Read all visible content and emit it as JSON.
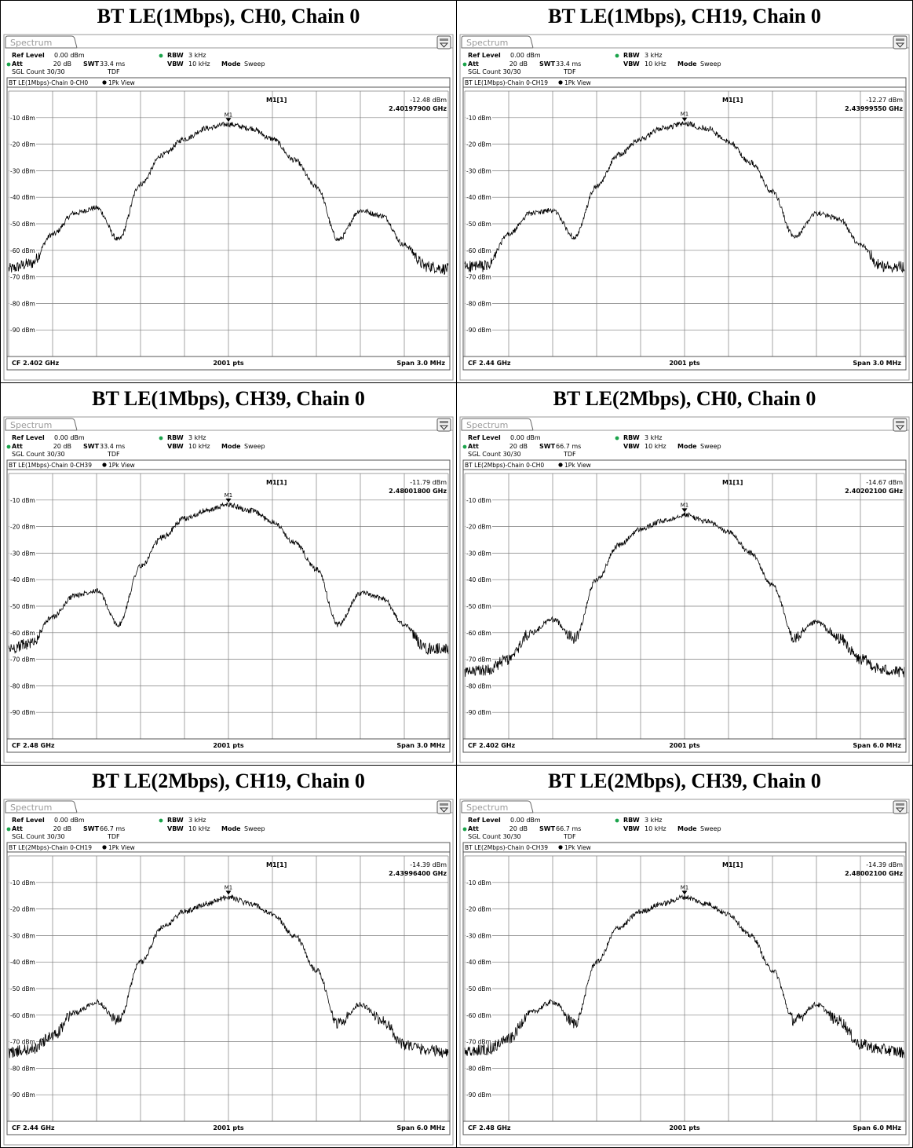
{
  "panels": [
    {
      "title": "BT LE(1Mbps), CH0, Chain 0",
      "tab": "Spectrum",
      "settings": {
        "ref_level_label": "Ref Level",
        "ref_level": "0.00 dBm",
        "att_label": "Att",
        "att": "20 dB",
        "swt_label": "SWT",
        "swt": "33.4 ms",
        "rbw_label": "RBW",
        "rbw": "3 kHz",
        "vbw_label": "VBW",
        "vbw": "10 kHz",
        "mode_label": "Mode",
        "mode": "Sweep",
        "count": "SGL Count 30/30",
        "tdf": "TDF"
      },
      "trace_label": "BT LE(1Mbps)-Chain 0-CH0",
      "trace_mode": "1Pk View",
      "marker": {
        "name": "M1[1]",
        "tag": "M1",
        "level": "-12.48 dBm",
        "freq": "2.40197900 GHz"
      },
      "footer": {
        "cf": "CF 2.402 GHz",
        "pts": "2001 pts",
        "span": "Span 3.0 MHz"
      }
    },
    {
      "title": "BT LE(1Mbps), CH19, Chain 0",
      "tab": "Spectrum",
      "settings": {
        "ref_level_label": "Ref Level",
        "ref_level": "0.00 dBm",
        "att_label": "Att",
        "att": "20 dB",
        "swt_label": "SWT",
        "swt": "33.4 ms",
        "rbw_label": "RBW",
        "rbw": "3 kHz",
        "vbw_label": "VBW",
        "vbw": "10 kHz",
        "mode_label": "Mode",
        "mode": "Sweep",
        "count": "SGL Count 30/30",
        "tdf": "TDF"
      },
      "trace_label": "BT LE(1Mbps)-Chain 0-CH19",
      "trace_mode": "1Pk View",
      "marker": {
        "name": "M1[1]",
        "tag": "M1",
        "level": "-12.27 dBm",
        "freq": "2.43999550 GHz"
      },
      "footer": {
        "cf": "CF 2.44 GHz",
        "pts": "2001 pts",
        "span": "Span 3.0 MHz"
      }
    },
    {
      "title": "BT LE(1Mbps), CH39, Chain 0",
      "tab": "Spectrum",
      "settings": {
        "ref_level_label": "Ref Level",
        "ref_level": "0.00 dBm",
        "att_label": "Att",
        "att": "20 dB",
        "swt_label": "SWT",
        "swt": "33.4 ms",
        "rbw_label": "RBW",
        "rbw": "3 kHz",
        "vbw_label": "VBW",
        "vbw": "10 kHz",
        "mode_label": "Mode",
        "mode": "Sweep",
        "count": "SGL Count 30/30",
        "tdf": "TDF"
      },
      "trace_label": "BT LE(1Mbps)-Chain 0-CH39",
      "trace_mode": "1Pk View",
      "marker": {
        "name": "M1[1]",
        "tag": "M1",
        "level": "-11.79 dBm",
        "freq": "2.48001800 GHz"
      },
      "footer": {
        "cf": "CF 2.48 GHz",
        "pts": "2001 pts",
        "span": "Span 3.0 MHz"
      }
    },
    {
      "title": "BT LE(2Mbps), CH0, Chain 0",
      "tab": "Spectrum",
      "settings": {
        "ref_level_label": "Ref Level",
        "ref_level": "0.00 dBm",
        "att_label": "Att",
        "att": "20 dB",
        "swt_label": "SWT",
        "swt": "66.7 ms",
        "rbw_label": "RBW",
        "rbw": "3 kHz",
        "vbw_label": "VBW",
        "vbw": "10 kHz",
        "mode_label": "Mode",
        "mode": "Sweep",
        "count": "SGL Count 30/30",
        "tdf": "TDF"
      },
      "trace_label": "BT LE(2Mbps)-Chain 0-CH0",
      "trace_mode": "1Pk View",
      "marker": {
        "name": "M1[1]",
        "tag": "M1",
        "level": "-14.67 dBm",
        "freq": "2.40202100 GHz"
      },
      "footer": {
        "cf": "CF 2.402 GHz",
        "pts": "2001 pts",
        "span": "Span 6.0 MHz"
      }
    },
    {
      "title": "BT LE(2Mbps), CH19, Chain 0",
      "tab": "Spectrum",
      "settings": {
        "ref_level_label": "Ref Level",
        "ref_level": "0.00 dBm",
        "att_label": "Att",
        "att": "20 dB",
        "swt_label": "SWT",
        "swt": "66.7 ms",
        "rbw_label": "RBW",
        "rbw": "3 kHz",
        "vbw_label": "VBW",
        "vbw": "10 kHz",
        "mode_label": "Mode",
        "mode": "Sweep",
        "count": "SGL Count 30/30",
        "tdf": "TDF"
      },
      "trace_label": "BT LE(2Mbps)-Chain 0-CH19",
      "trace_mode": "1Pk View",
      "marker": {
        "name": "M1[1]",
        "tag": "M1",
        "level": "-14.39 dBm",
        "freq": "2.43996400 GHz"
      },
      "footer": {
        "cf": "CF 2.44 GHz",
        "pts": "2001 pts",
        "span": "Span 6.0 MHz"
      }
    },
    {
      "title": "BT LE(2Mbps), CH39, Chain 0",
      "tab": "Spectrum",
      "settings": {
        "ref_level_label": "Ref Level",
        "ref_level": "0.00 dBm",
        "att_label": "Att",
        "att": "20 dB",
        "swt_label": "SWT",
        "swt": "66.7 ms",
        "rbw_label": "RBW",
        "rbw": "3 kHz",
        "vbw_label": "VBW",
        "vbw": "10 kHz",
        "mode_label": "Mode",
        "mode": "Sweep",
        "count": "SGL Count 30/30",
        "tdf": "TDF"
      },
      "trace_label": "BT LE(2Mbps)-Chain 0-CH39",
      "trace_mode": "1Pk View",
      "marker": {
        "name": "M1[1]",
        "tag": "M1",
        "level": "-14.39 dBm",
        "freq": "2.48002100 GHz"
      },
      "footer": {
        "cf": "CF 2.48 GHz",
        "pts": "2001 pts",
        "span": "Span 6.0 MHz"
      }
    }
  ],
  "chart_data": [
    {
      "type": "line",
      "ylim": [
        -100,
        0
      ],
      "ytick_labels": [
        "-10 dBm",
        "-20 dBm",
        "-30 dBm",
        "-40 dBm",
        "-50 dBm",
        "-60 dBm",
        "-70 dBm",
        "-80 dBm",
        "-90 dBm"
      ],
      "xlim_mhz": [
        -1.5,
        1.5
      ],
      "grid": true,
      "series": [
        {
          "x": [
            -1.5,
            -1.35,
            -1.2,
            -1.05,
            -0.9,
            -0.75,
            -0.6,
            -0.45,
            -0.3,
            -0.15,
            0,
            0.15,
            0.3,
            0.45,
            0.6,
            0.75,
            0.9,
            1.05,
            1.2,
            1.35,
            1.5
          ],
          "y": [
            -67,
            -65,
            -54,
            -46,
            -44,
            -56,
            -35,
            -24,
            -18,
            -14,
            -12.5,
            -14,
            -18,
            -26,
            -36,
            -56,
            -45,
            -47,
            -58,
            -66,
            -67
          ]
        }
      ]
    },
    {
      "type": "line",
      "ylim": [
        -100,
        0
      ],
      "ytick_labels": [
        "-10 dBm",
        "-20 dBm",
        "-30 dBm",
        "-40 dBm",
        "-50 dBm",
        "-60 dBm",
        "-70 dBm",
        "-80 dBm",
        "-90 dBm"
      ],
      "xlim_mhz": [
        -1.5,
        1.5
      ],
      "grid": true,
      "series": [
        {
          "x": [
            -1.5,
            -1.35,
            -1.2,
            -1.05,
            -0.9,
            -0.75,
            -0.6,
            -0.45,
            -0.3,
            -0.15,
            0,
            0.15,
            0.3,
            0.45,
            0.6,
            0.75,
            0.9,
            1.05,
            1.2,
            1.35,
            1.5
          ],
          "y": [
            -66,
            -66,
            -54,
            -46,
            -45,
            -55,
            -36,
            -24,
            -18,
            -14,
            -12.3,
            -14,
            -19,
            -27,
            -38,
            -55,
            -46,
            -48,
            -58,
            -66,
            -66
          ]
        }
      ]
    },
    {
      "type": "line",
      "ylim": [
        -100,
        0
      ],
      "ytick_labels": [
        "-10 dBm",
        "-20 dBm",
        "-30 dBm",
        "-40 dBm",
        "-50 dBm",
        "-60 dBm",
        "-70 dBm",
        "-80 dBm",
        "-90 dBm"
      ],
      "xlim_mhz": [
        -1.5,
        1.5
      ],
      "grid": true,
      "series": [
        {
          "x": [
            -1.5,
            -1.35,
            -1.2,
            -1.05,
            -0.9,
            -0.75,
            -0.6,
            -0.45,
            -0.3,
            -0.15,
            0,
            0.15,
            0.3,
            0.45,
            0.6,
            0.75,
            0.9,
            1.05,
            1.2,
            1.35,
            1.5
          ],
          "y": [
            -66,
            -64,
            -54,
            -46,
            -44,
            -57,
            -35,
            -24,
            -17,
            -14,
            -11.8,
            -14,
            -18,
            -26,
            -36,
            -57,
            -45,
            -47,
            -57,
            -66,
            -66
          ]
        }
      ]
    },
    {
      "type": "line",
      "ylim": [
        -100,
        0
      ],
      "ytick_labels": [
        "-10 dBm",
        "-20 dBm",
        "-30 dBm",
        "-40 dBm",
        "-50 dBm",
        "-60 dBm",
        "-70 dBm",
        "-80 dBm",
        "-90 dBm"
      ],
      "xlim_mhz": [
        -3,
        3
      ],
      "grid": true,
      "series": [
        {
          "x": [
            -3,
            -2.7,
            -2.4,
            -2.1,
            -1.8,
            -1.5,
            -1.2,
            -0.9,
            -0.6,
            -0.3,
            0,
            0.3,
            0.6,
            0.9,
            1.2,
            1.5,
            1.8,
            2.1,
            2.4,
            2.7,
            3
          ],
          "y": [
            -75,
            -74,
            -70,
            -60,
            -55,
            -62,
            -40,
            -27,
            -21,
            -18,
            -15.5,
            -18,
            -22,
            -30,
            -42,
            -62,
            -56,
            -62,
            -70,
            -74,
            -75
          ]
        }
      ]
    },
    {
      "type": "line",
      "ylim": [
        -100,
        0
      ],
      "ytick_labels": [
        "-10 dBm",
        "-20 dBm",
        "-30 dBm",
        "-40 dBm",
        "-50 dBm",
        "-60 dBm",
        "-70 dBm",
        "-80 dBm",
        "-90 dBm"
      ],
      "xlim_mhz": [
        -3,
        3
      ],
      "grid": true,
      "series": [
        {
          "x": [
            -3,
            -2.7,
            -2.4,
            -2.1,
            -1.8,
            -1.5,
            -1.2,
            -0.9,
            -0.6,
            -0.3,
            0,
            0.3,
            0.6,
            0.9,
            1.2,
            1.5,
            1.8,
            2.1,
            2.4,
            2.7,
            3
          ],
          "y": [
            -74,
            -73,
            -68,
            -59,
            -55,
            -62,
            -40,
            -27,
            -21,
            -18,
            -15.5,
            -18,
            -22,
            -30,
            -43,
            -63,
            -56,
            -62,
            -71,
            -73,
            -74
          ]
        }
      ]
    },
    {
      "type": "line",
      "ylim": [
        -100,
        0
      ],
      "ytick_labels": [
        "-10 dBm",
        "-20 dBm",
        "-30 dBm",
        "-40 dBm",
        "-50 dBm",
        "-60 dBm",
        "-70 dBm",
        "-80 dBm",
        "-90 dBm"
      ],
      "xlim_mhz": [
        -3,
        3
      ],
      "grid": true,
      "series": [
        {
          "x": [
            -3,
            -2.7,
            -2.4,
            -2.1,
            -1.8,
            -1.5,
            -1.2,
            -0.9,
            -0.6,
            -0.3,
            0,
            0.3,
            0.6,
            0.9,
            1.2,
            1.5,
            1.8,
            2.1,
            2.4,
            2.7,
            3
          ],
          "y": [
            -74,
            -73,
            -69,
            -59,
            -55,
            -63,
            -40,
            -27,
            -21,
            -18,
            -15.5,
            -18,
            -22,
            -30,
            -43,
            -62,
            -56,
            -62,
            -71,
            -73,
            -74
          ]
        }
      ]
    }
  ],
  "colors": {
    "trace": "#000000",
    "grid": "#7f7f7f",
    "tab_border": "#666666",
    "tab_text": "#9a9a9a",
    "led": "#1aa34a",
    "frame": "#555555"
  }
}
